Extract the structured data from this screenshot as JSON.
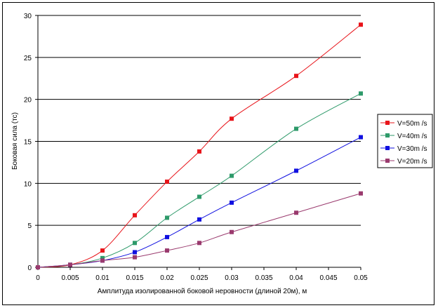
{
  "chart_data": {
    "type": "line",
    "title": "",
    "xlabel": "Амплитуда изолированной боковой неровности (длиной 20м), м",
    "ylabel": "Боковая сила (тс)",
    "xlim": [
      0,
      0.05
    ],
    "ylim": [
      0,
      30
    ],
    "x_ticks": [
      "0",
      "0.005",
      "0.01",
      "0.015",
      "0.02",
      "0.025",
      "0.03",
      "0.035",
      "0.04",
      "0.045",
      "0.05"
    ],
    "y_ticks": [
      "0",
      "5",
      "10",
      "15",
      "20",
      "25",
      "30"
    ],
    "grid": "horizontal",
    "legend_position": "right",
    "series": [
      {
        "name": "V=50m /s",
        "color": "#e8141a",
        "x": [
          0,
          0.005,
          0.01,
          0.015,
          0.02,
          0.025,
          0.03,
          0.04,
          0.05
        ],
        "y": [
          0,
          0.3,
          2.0,
          6.2,
          10.2,
          13.8,
          17.7,
          22.8,
          28.9
        ]
      },
      {
        "name": "V=40m /s",
        "color": "#2e9a6a",
        "x": [
          0,
          0.005,
          0.01,
          0.015,
          0.02,
          0.025,
          0.03,
          0.04,
          0.05
        ],
        "y": [
          0,
          0.3,
          1.1,
          2.9,
          5.9,
          8.4,
          10.9,
          16.5,
          20.7
        ]
      },
      {
        "name": "V=30m /s",
        "color": "#1010e0",
        "x": [
          0,
          0.005,
          0.01,
          0.015,
          0.02,
          0.025,
          0.03,
          0.04,
          0.05
        ],
        "y": [
          0,
          0.3,
          0.8,
          1.8,
          3.6,
          5.7,
          7.7,
          11.5,
          15.5
        ]
      },
      {
        "name": "V=20m /s",
        "color": "#9a3a6e",
        "x": [
          0,
          0.005,
          0.01,
          0.015,
          0.02,
          0.025,
          0.03,
          0.04,
          0.05
        ],
        "y": [
          0,
          0.3,
          0.8,
          1.2,
          2.0,
          2.9,
          4.2,
          6.5,
          8.8
        ]
      }
    ]
  }
}
